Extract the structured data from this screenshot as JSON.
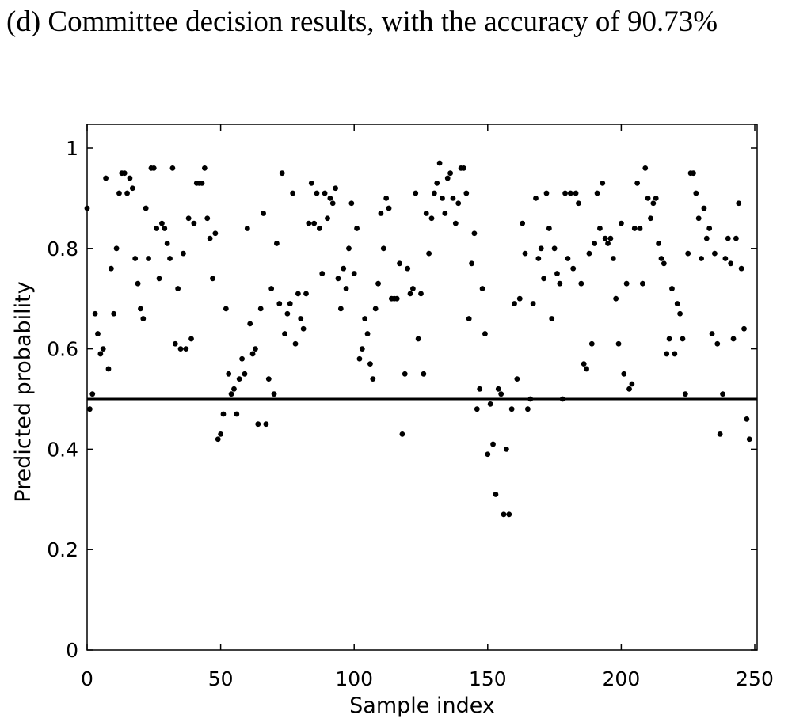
{
  "caption": "(d) Committee decision results, with the accuracy of 90.73%",
  "chart_data": {
    "type": "scatter",
    "title": "",
    "xlabel": "Sample index",
    "ylabel": "Predicted probability",
    "xlim": [
      0,
      250
    ],
    "ylim": [
      0,
      1.05
    ],
    "xticks": [
      0,
      50,
      100,
      150,
      200,
      250
    ],
    "xtick_labels": [
      "0",
      "50",
      "100",
      "150",
      "200",
      "250"
    ],
    "yticks": [
      0,
      0.2,
      0.4,
      0.6,
      0.8,
      1
    ],
    "ytick_labels": [
      "0",
      "0.2",
      "0.4",
      "0.6",
      "0.8",
      "1"
    ],
    "grid": false,
    "threshold": 0.5,
    "point_color": "#000000",
    "points": [
      [
        0,
        0.88
      ],
      [
        1,
        0.48
      ],
      [
        2,
        0.51
      ],
      [
        3,
        0.67
      ],
      [
        4,
        0.63
      ],
      [
        5,
        0.59
      ],
      [
        6,
        0.6
      ],
      [
        7,
        0.94
      ],
      [
        8,
        0.56
      ],
      [
        9,
        0.76
      ],
      [
        10,
        0.67
      ],
      [
        11,
        0.8
      ],
      [
        12,
        0.91
      ],
      [
        13,
        0.95
      ],
      [
        14,
        0.95
      ],
      [
        15,
        0.91
      ],
      [
        16,
        0.94
      ],
      [
        17,
        0.92
      ],
      [
        18,
        0.78
      ],
      [
        19,
        0.73
      ],
      [
        20,
        0.68
      ],
      [
        21,
        0.66
      ],
      [
        22,
        0.88
      ],
      [
        23,
        0.78
      ],
      [
        24,
        0.96
      ],
      [
        25,
        0.96
      ],
      [
        26,
        0.84
      ],
      [
        27,
        0.74
      ],
      [
        28,
        0.85
      ],
      [
        29,
        0.84
      ],
      [
        30,
        0.81
      ],
      [
        31,
        0.78
      ],
      [
        32,
        0.96
      ],
      [
        33,
        0.61
      ],
      [
        34,
        0.72
      ],
      [
        35,
        0.6
      ],
      [
        36,
        0.79
      ],
      [
        37,
        0.6
      ],
      [
        38,
        0.86
      ],
      [
        39,
        0.62
      ],
      [
        40,
        0.85
      ],
      [
        41,
        0.93
      ],
      [
        42,
        0.93
      ],
      [
        43,
        0.93
      ],
      [
        44,
        0.96
      ],
      [
        45,
        0.86
      ],
      [
        46,
        0.82
      ],
      [
        47,
        0.74
      ],
      [
        48,
        0.83
      ],
      [
        49,
        0.42
      ],
      [
        50,
        0.43
      ],
      [
        51,
        0.47
      ],
      [
        52,
        0.68
      ],
      [
        53,
        0.55
      ],
      [
        54,
        0.51
      ],
      [
        55,
        0.52
      ],
      [
        56,
        0.47
      ],
      [
        57,
        0.54
      ],
      [
        58,
        0.58
      ],
      [
        59,
        0.55
      ],
      [
        60,
        0.84
      ],
      [
        61,
        0.65
      ],
      [
        62,
        0.59
      ],
      [
        63,
        0.6
      ],
      [
        64,
        0.45
      ],
      [
        65,
        0.68
      ],
      [
        66,
        0.87
      ],
      [
        67,
        0.45
      ],
      [
        68,
        0.54
      ],
      [
        69,
        0.72
      ],
      [
        70,
        0.51
      ],
      [
        71,
        0.81
      ],
      [
        72,
        0.69
      ],
      [
        73,
        0.95
      ],
      [
        74,
        0.63
      ],
      [
        75,
        0.67
      ],
      [
        76,
        0.69
      ],
      [
        77,
        0.91
      ],
      [
        78,
        0.61
      ],
      [
        79,
        0.71
      ],
      [
        80,
        0.66
      ],
      [
        81,
        0.64
      ],
      [
        82,
        0.71
      ],
      [
        83,
        0.85
      ],
      [
        84,
        0.93
      ],
      [
        85,
        0.85
      ],
      [
        86,
        0.91
      ],
      [
        87,
        0.84
      ],
      [
        88,
        0.75
      ],
      [
        89,
        0.91
      ],
      [
        90,
        0.86
      ],
      [
        91,
        0.9
      ],
      [
        92,
        0.89
      ],
      [
        93,
        0.92
      ],
      [
        94,
        0.74
      ],
      [
        95,
        0.68
      ],
      [
        96,
        0.76
      ],
      [
        97,
        0.72
      ],
      [
        98,
        0.8
      ],
      [
        99,
        0.89
      ],
      [
        100,
        0.75
      ],
      [
        101,
        0.84
      ],
      [
        102,
        0.58
      ],
      [
        103,
        0.6
      ],
      [
        104,
        0.66
      ],
      [
        105,
        0.63
      ],
      [
        106,
        0.57
      ],
      [
        107,
        0.54
      ],
      [
        108,
        0.68
      ],
      [
        109,
        0.73
      ],
      [
        110,
        0.87
      ],
      [
        111,
        0.8
      ],
      [
        112,
        0.9
      ],
      [
        113,
        0.88
      ],
      [
        114,
        0.7
      ],
      [
        115,
        0.7
      ],
      [
        116,
        0.7
      ],
      [
        117,
        0.77
      ],
      [
        118,
        0.43
      ],
      [
        119,
        0.55
      ],
      [
        120,
        0.76
      ],
      [
        121,
        0.71
      ],
      [
        122,
        0.72
      ],
      [
        123,
        0.91
      ],
      [
        124,
        0.62
      ],
      [
        125,
        0.71
      ],
      [
        126,
        0.55
      ],
      [
        127,
        0.87
      ],
      [
        128,
        0.79
      ],
      [
        129,
        0.86
      ],
      [
        130,
        0.91
      ],
      [
        131,
        0.93
      ],
      [
        132,
        0.97
      ],
      [
        133,
        0.9
      ],
      [
        134,
        0.87
      ],
      [
        135,
        0.94
      ],
      [
        136,
        0.95
      ],
      [
        137,
        0.9
      ],
      [
        138,
        0.85
      ],
      [
        139,
        0.89
      ],
      [
        140,
        0.96
      ],
      [
        141,
        0.96
      ],
      [
        142,
        0.91
      ],
      [
        143,
        0.66
      ],
      [
        144,
        0.77
      ],
      [
        145,
        0.83
      ],
      [
        146,
        0.48
      ],
      [
        147,
        0.52
      ],
      [
        148,
        0.72
      ],
      [
        149,
        0.63
      ],
      [
        150,
        0.39
      ],
      [
        151,
        0.49
      ],
      [
        152,
        0.41
      ],
      [
        153,
        0.31
      ],
      [
        154,
        0.52
      ],
      [
        155,
        0.51
      ],
      [
        156,
        0.27
      ],
      [
        157,
        0.4
      ],
      [
        158,
        0.27
      ],
      [
        159,
        0.48
      ],
      [
        160,
        0.69
      ],
      [
        161,
        0.54
      ],
      [
        162,
        0.7
      ],
      [
        163,
        0.85
      ],
      [
        164,
        0.79
      ],
      [
        165,
        0.48
      ],
      [
        166,
        0.5
      ],
      [
        167,
        0.69
      ],
      [
        168,
        0.9
      ],
      [
        169,
        0.78
      ],
      [
        170,
        0.8
      ],
      [
        171,
        0.74
      ],
      [
        172,
        0.91
      ],
      [
        173,
        0.84
      ],
      [
        174,
        0.66
      ],
      [
        175,
        0.8
      ],
      [
        176,
        0.75
      ],
      [
        177,
        0.73
      ],
      [
        178,
        0.5
      ],
      [
        179,
        0.91
      ],
      [
        180,
        0.78
      ],
      [
        181,
        0.91
      ],
      [
        182,
        0.76
      ],
      [
        183,
        0.91
      ],
      [
        184,
        0.89
      ],
      [
        185,
        0.73
      ],
      [
        186,
        0.57
      ],
      [
        187,
        0.56
      ],
      [
        188,
        0.79
      ],
      [
        189,
        0.61
      ],
      [
        190,
        0.81
      ],
      [
        191,
        0.91
      ],
      [
        192,
        0.84
      ],
      [
        193,
        0.93
      ],
      [
        194,
        0.82
      ],
      [
        195,
        0.81
      ],
      [
        196,
        0.82
      ],
      [
        197,
        0.78
      ],
      [
        198,
        0.7
      ],
      [
        199,
        0.61
      ],
      [
        200,
        0.85
      ],
      [
        201,
        0.55
      ],
      [
        202,
        0.73
      ],
      [
        203,
        0.52
      ],
      [
        204,
        0.53
      ],
      [
        205,
        0.84
      ],
      [
        206,
        0.93
      ],
      [
        207,
        0.84
      ],
      [
        208,
        0.73
      ],
      [
        209,
        0.96
      ],
      [
        210,
        0.9
      ],
      [
        211,
        0.86
      ],
      [
        212,
        0.89
      ],
      [
        213,
        0.9
      ],
      [
        214,
        0.81
      ],
      [
        215,
        0.78
      ],
      [
        216,
        0.77
      ],
      [
        217,
        0.59
      ],
      [
        218,
        0.62
      ],
      [
        219,
        0.72
      ],
      [
        220,
        0.59
      ],
      [
        221,
        0.69
      ],
      [
        222,
        0.67
      ],
      [
        223,
        0.62
      ],
      [
        224,
        0.51
      ],
      [
        225,
        0.79
      ],
      [
        226,
        0.95
      ],
      [
        227,
        0.95
      ],
      [
        228,
        0.91
      ],
      [
        229,
        0.86
      ],
      [
        230,
        0.78
      ],
      [
        231,
        0.88
      ],
      [
        232,
        0.82
      ],
      [
        233,
        0.84
      ],
      [
        234,
        0.63
      ],
      [
        235,
        0.79
      ],
      [
        236,
        0.61
      ],
      [
        237,
        0.43
      ],
      [
        238,
        0.51
      ],
      [
        239,
        0.78
      ],
      [
        240,
        0.82
      ],
      [
        241,
        0.77
      ],
      [
        242,
        0.62
      ],
      [
        243,
        0.82
      ],
      [
        244,
        0.89
      ],
      [
        245,
        0.76
      ],
      [
        246,
        0.64
      ],
      [
        247,
        0.46
      ],
      [
        248,
        0.42
      ]
    ]
  }
}
